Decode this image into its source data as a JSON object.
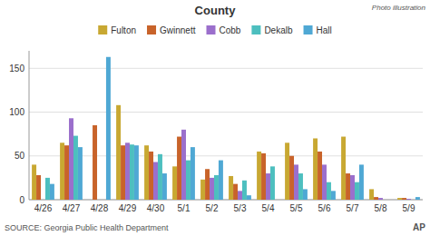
{
  "chart_data": {
    "type": "bar",
    "title": "County",
    "annotations": [
      "Photo illustration",
      "SOURCE: Georgia Public Health Department",
      "AP"
    ],
    "categories": [
      "4/26",
      "4/27",
      "4/28",
      "4/29",
      "4/30",
      "5/1",
      "5/2",
      "5/3",
      "5/4",
      "5/5",
      "5/6",
      "5/7",
      "5/8",
      "5/9"
    ],
    "series": [
      {
        "name": "Fulton",
        "color": "#c8a832",
        "values": [
          40,
          65,
          0,
          108,
          62,
          38,
          23,
          27,
          55,
          65,
          70,
          72,
          12,
          2
        ]
      },
      {
        "name": "Gwinnett",
        "color": "#c8632a",
        "values": [
          28,
          62,
          85,
          62,
          55,
          72,
          35,
          18,
          53,
          50,
          55,
          30,
          3,
          2
        ]
      },
      {
        "name": "Cobb",
        "color": "#9b6fcc",
        "values": [
          0,
          93,
          0,
          65,
          43,
          80,
          25,
          10,
          30,
          40,
          40,
          28,
          2,
          1
        ]
      },
      {
        "name": "Dekalb",
        "color": "#4dbfbf",
        "values": [
          25,
          73,
          0,
          63,
          52,
          45,
          28,
          22,
          38,
          30,
          20,
          20,
          0,
          0
        ]
      },
      {
        "name": "Hall",
        "color": "#4fa8d4",
        "values": [
          18,
          60,
          163,
          62,
          30,
          60,
          45,
          5,
          0,
          12,
          10,
          40,
          0,
          3
        ]
      }
    ],
    "ylim": [
      0,
      170
    ],
    "yticks": [
      0,
      50,
      100,
      150
    ],
    "grid": true,
    "legend": "top"
  }
}
